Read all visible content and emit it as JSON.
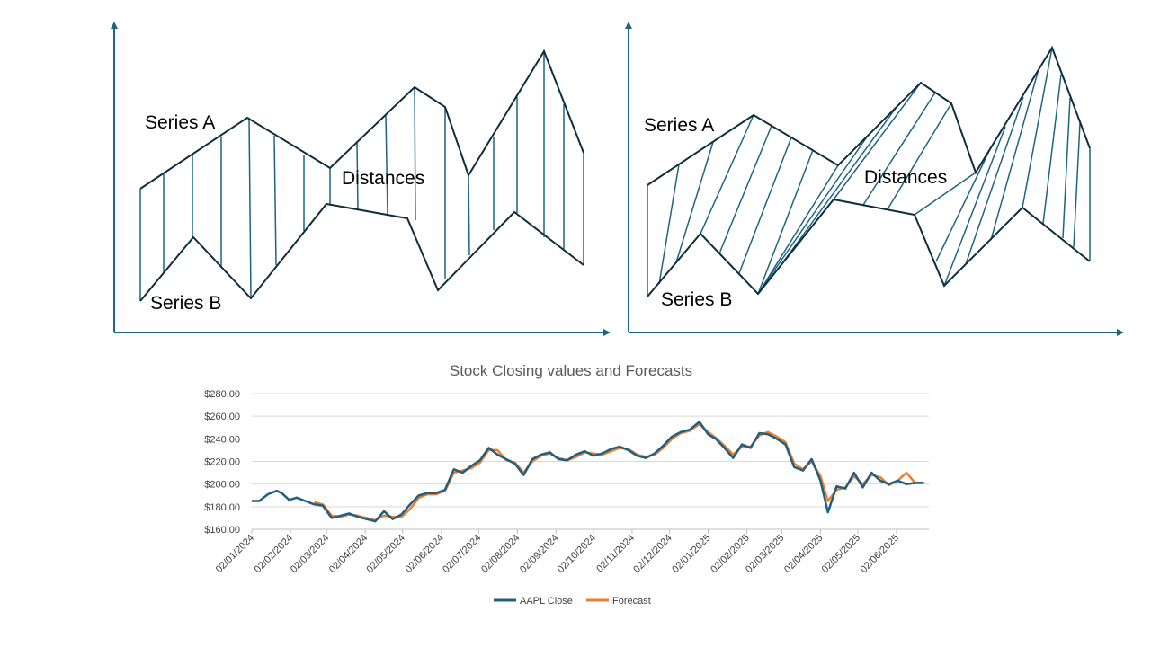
{
  "diagrams": {
    "colors": {
      "axis": "#1f6480",
      "series_line": "#0e2d3d",
      "distance_line": "#1f6480"
    },
    "left": {
      "labels": {
        "series_a": "Series A",
        "series_b": "Series B",
        "distances": "Distances"
      }
    },
    "right": {
      "labels": {
        "series_a": "Series A",
        "series_b": "Series B",
        "distances": "Distances"
      }
    }
  },
  "chart_data": {
    "type": "line",
    "title": "Stock Closing values and Forecasts",
    "x_ticks": [
      "02/01/2024",
      "02/02/2024",
      "02/03/2024",
      "02/04/2024",
      "02/05/2024",
      "02/06/2024",
      "02/07/2024",
      "02/08/2024",
      "02/09/2024",
      "02/10/2024",
      "02/11/2024",
      "02/12/2024",
      "02/01/2025",
      "02/02/2025",
      "02/03/2025",
      "02/04/2025",
      "02/05/2025",
      "02/06/2025"
    ],
    "x_range": [
      "02/01/2024",
      "28/06/2025"
    ],
    "y_ticks": [
      "$160.00",
      "$180.00",
      "$200.00",
      "$220.00",
      "$240.00",
      "$260.00",
      "$280.00"
    ],
    "ylim": [
      160,
      280
    ],
    "grid": true,
    "legend_position": "bottom",
    "colors": {
      "AAPL Close": "#1f5f7f",
      "Forecast": "#ed7d31"
    },
    "series": [
      {
        "name": "AAPL Close",
        "x": [
          "02/01/2024",
          "08/01/2024",
          "15/01/2024",
          "22/01/2024",
          "26/01/2024",
          "01/02/2024",
          "07/02/2024",
          "14/02/2024",
          "21/02/2024",
          "28/02/2024",
          "06/03/2024",
          "13/03/2024",
          "20/03/2024",
          "27/03/2024",
          "03/04/2024",
          "10/04/2024",
          "17/04/2024",
          "24/04/2024",
          "01/05/2024",
          "08/05/2024",
          "15/05/2024",
          "22/05/2024",
          "29/05/2024",
          "05/06/2024",
          "12/06/2024",
          "19/06/2024",
          "26/06/2024",
          "03/07/2024",
          "10/07/2024",
          "17/07/2024",
          "24/07/2024",
          "31/07/2024",
          "07/08/2024",
          "14/08/2024",
          "21/08/2024",
          "28/08/2024",
          "04/09/2024",
          "11/09/2024",
          "18/09/2024",
          "25/09/2024",
          "02/10/2024",
          "09/10/2024",
          "16/10/2024",
          "23/10/2024",
          "30/10/2024",
          "06/11/2024",
          "13/11/2024",
          "20/11/2024",
          "27/11/2024",
          "04/12/2024",
          "11/12/2024",
          "18/12/2024",
          "26/12/2024",
          "02/01/2025",
          "08/01/2025",
          "15/01/2025",
          "22/01/2025",
          "29/01/2025",
          "05/02/2025",
          "12/02/2025",
          "19/02/2025",
          "26/02/2025",
          "05/03/2025",
          "12/03/2025",
          "19/03/2025",
          "26/03/2025",
          "02/04/2025",
          "08/04/2025",
          "15/04/2025",
          "22/04/2025",
          "29/04/2025",
          "06/05/2025",
          "13/05/2025",
          "20/05/2025",
          "27/05/2025",
          "03/06/2025",
          "10/06/2025",
          "17/06/2025",
          "24/06/2025"
        ],
        "values": [
          185,
          185,
          191,
          194,
          192,
          186,
          188,
          185,
          182,
          181,
          170,
          172,
          174,
          171,
          169,
          167,
          176,
          169,
          173,
          182,
          190,
          192,
          192,
          195,
          213,
          210,
          216,
          221,
          232,
          226,
          222,
          218,
          208,
          222,
          226,
          228,
          222,
          221,
          226,
          229,
          225,
          227,
          231,
          233,
          230,
          225,
          223,
          227,
          234,
          242,
          246,
          248,
          255,
          244,
          240,
          232,
          223,
          235,
          232,
          245,
          244,
          240,
          235,
          215,
          212,
          222,
          203,
          175,
          198,
          196,
          210,
          197,
          210,
          203,
          200,
          203,
          200,
          201,
          201
        ]
      },
      {
        "name": "Forecast",
        "x": [
          "02/01/2024",
          "08/01/2024",
          "15/01/2024",
          "22/01/2024",
          "26/01/2024",
          "01/02/2024",
          "07/02/2024",
          "14/02/2024",
          "21/02/2024",
          "28/02/2024",
          "06/03/2024",
          "13/03/2024",
          "20/03/2024",
          "27/03/2024",
          "03/04/2024",
          "10/04/2024",
          "17/04/2024",
          "24/04/2024",
          "01/05/2024",
          "08/05/2024",
          "15/05/2024",
          "22/05/2024",
          "29/05/2024",
          "05/06/2024",
          "12/06/2024",
          "19/06/2024",
          "26/06/2024",
          "03/07/2024",
          "10/07/2024",
          "17/07/2024",
          "24/07/2024",
          "31/07/2024",
          "07/08/2024",
          "14/08/2024",
          "21/08/2024",
          "28/08/2024",
          "04/09/2024",
          "11/09/2024",
          "18/09/2024",
          "25/09/2024",
          "02/10/2024",
          "09/10/2024",
          "16/10/2024",
          "23/10/2024",
          "30/10/2024",
          "06/11/2024",
          "13/11/2024",
          "20/11/2024",
          "27/11/2024",
          "04/12/2024",
          "11/12/2024",
          "18/12/2024",
          "26/12/2024",
          "02/01/2025",
          "08/01/2025",
          "15/01/2025",
          "22/01/2025",
          "29/01/2025",
          "05/02/2025",
          "12/02/2025",
          "19/02/2025",
          "26/02/2025",
          "05/03/2025",
          "12/03/2025",
          "19/03/2025",
          "26/03/2025",
          "02/04/2025",
          "08/04/2025",
          "15/04/2025",
          "22/04/2025",
          "29/04/2025",
          "06/05/2025",
          "13/05/2025",
          "20/05/2025",
          "27/05/2025",
          "03/06/2025",
          "10/06/2025",
          "17/06/2025",
          "24/06/2025"
        ],
        "values": [
          null,
          null,
          null,
          null,
          null,
          null,
          null,
          null,
          184,
          182,
          172,
          171,
          173,
          172,
          170,
          168,
          172,
          171,
          171,
          178,
          188,
          191,
          191,
          194,
          210,
          212,
          214,
          219,
          230,
          230,
          221,
          219,
          210,
          220,
          225,
          227,
          223,
          221,
          224,
          228,
          227,
          226,
          229,
          232,
          231,
          226,
          224,
          226,
          232,
          240,
          245,
          247,
          253,
          246,
          241,
          234,
          226,
          233,
          233,
          243,
          246,
          242,
          237,
          218,
          213,
          220,
          207,
          185,
          195,
          197,
          207,
          200,
          208,
          206,
          199,
          203,
          210,
          201,
          201
        ]
      }
    ]
  }
}
